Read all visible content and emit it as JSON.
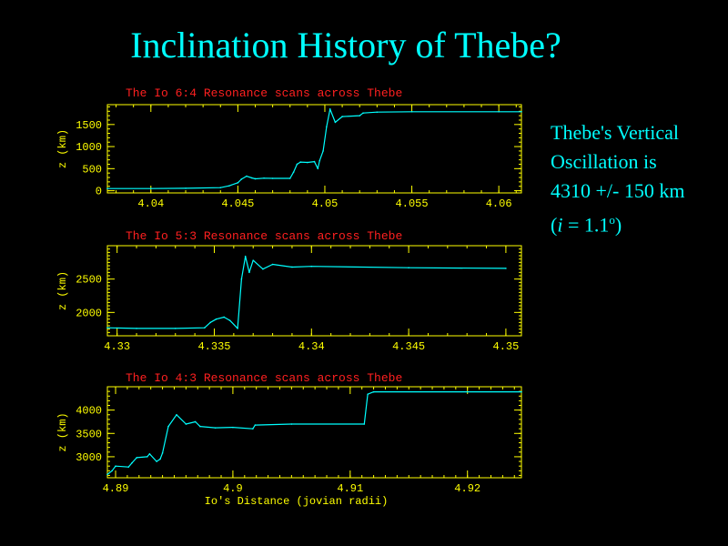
{
  "slide": {
    "title": "Inclination History of Thebe?",
    "note_line1": "Thebe's Vertical",
    "note_line2": "Oscillation is",
    "note_line3": "4310 +/-  150 km",
    "note_line4_italic": "i",
    "note_line4_rest": " = 1.1",
    "note_line4_sup": "o",
    "note_line4_close": ")",
    "note_line4_open": "("
  },
  "colors": {
    "background": "#000000",
    "title": "#00ffff",
    "panel_title": "#ff2020",
    "axes": "#ffff00",
    "trace": "#00ffff"
  },
  "chart_data": [
    {
      "type": "line",
      "title": "The Io 6:4 Resonance scans across Thebe",
      "xlabel": "",
      "ylabel": "z (km)",
      "xlim": [
        4.0375,
        4.0613
      ],
      "ylim": [
        -50,
        1950
      ],
      "xticks": [
        4.04,
        4.045,
        4.05,
        4.055,
        4.06
      ],
      "xtick_labels": [
        "4.04",
        "4.045",
        "4.05",
        "4.055",
        "4.06"
      ],
      "yticks": [
        0,
        500,
        1000,
        1500
      ],
      "ytick_labels": [
        "0",
        "500",
        "1000",
        "1500"
      ],
      "series": [
        {
          "x": [
            4.0375,
            4.04,
            4.042,
            4.044,
            4.0445,
            4.045,
            4.0452,
            4.0455,
            4.0458,
            4.046,
            4.0465,
            4.047,
            4.048,
            4.0482,
            4.0484,
            4.0486,
            4.049,
            4.0494,
            4.0496,
            4.0497,
            4.0499,
            4.0501,
            4.0503,
            4.0506,
            4.051,
            4.052,
            4.0522,
            4.053,
            4.055,
            4.06,
            4.0613
          ],
          "y": [
            50,
            50,
            55,
            70,
            110,
            180,
            260,
            330,
            290,
            270,
            285,
            280,
            280,
            420,
            600,
            650,
            640,
            660,
            500,
            680,
            900,
            1450,
            1850,
            1550,
            1680,
            1700,
            1760,
            1780,
            1790,
            1790,
            1790
          ]
        }
      ]
    },
    {
      "type": "line",
      "title": "The Io 5:3 Resonance scans across Thebe",
      "xlabel": "",
      "ylabel": "z (km)",
      "xlim": [
        4.3295,
        4.3508
      ],
      "ylim": [
        1650,
        3000
      ],
      "xticks": [
        4.33,
        4.335,
        4.34,
        4.345,
        4.35
      ],
      "xtick_labels": [
        "4.33",
        "4.335",
        "4.34",
        "4.345",
        "4.35"
      ],
      "yticks": [
        2000,
        2500
      ],
      "ytick_labels": [
        "2000",
        "2500"
      ],
      "series": [
        {
          "x": [
            4.3295,
            4.331,
            4.333,
            4.3345,
            4.3348,
            4.3351,
            4.3355,
            4.3358,
            4.3362,
            4.3364,
            4.3366,
            4.3368,
            4.337,
            4.3375,
            4.338,
            4.339,
            4.34,
            4.345,
            4.35
          ],
          "y": [
            1770,
            1760,
            1760,
            1770,
            1850,
            1900,
            1930,
            1880,
            1760,
            2500,
            2840,
            2600,
            2780,
            2650,
            2720,
            2680,
            2690,
            2670,
            2660
          ]
        }
      ]
    },
    {
      "type": "line",
      "title": "The Io 4:3 Resonance scans across Thebe",
      "xlabel": "Io's Distance (jovian radii)",
      "ylabel": "z (km)",
      "xlim": [
        4.8893,
        4.9246
      ],
      "ylim": [
        2550,
        4500
      ],
      "xticks": [
        4.89,
        4.9,
        4.91,
        4.92
      ],
      "xtick_labels": [
        "4.89",
        "4.9",
        "4.91",
        "4.92"
      ],
      "yticks": [
        3000,
        3500,
        4000
      ],
      "ytick_labels": [
        "3000",
        "3500",
        "4000"
      ],
      "series": [
        {
          "x": [
            4.8893,
            4.8897,
            4.89,
            4.8911,
            4.8914,
            4.8918,
            4.8927,
            4.8929,
            4.8935,
            4.8938,
            4.894,
            4.8945,
            4.8952,
            4.896,
            4.8968,
            4.8972,
            4.8985,
            4.9,
            4.9017,
            4.9019,
            4.905,
            4.9112,
            4.9115,
            4.912,
            4.9246
          ],
          "y": [
            2620,
            2700,
            2800,
            2780,
            2870,
            2980,
            3000,
            3060,
            2900,
            2950,
            3080,
            3650,
            3900,
            3700,
            3750,
            3650,
            3620,
            3630,
            3600,
            3680,
            3700,
            3700,
            4340,
            4390,
            4390
          ]
        }
      ]
    }
  ]
}
